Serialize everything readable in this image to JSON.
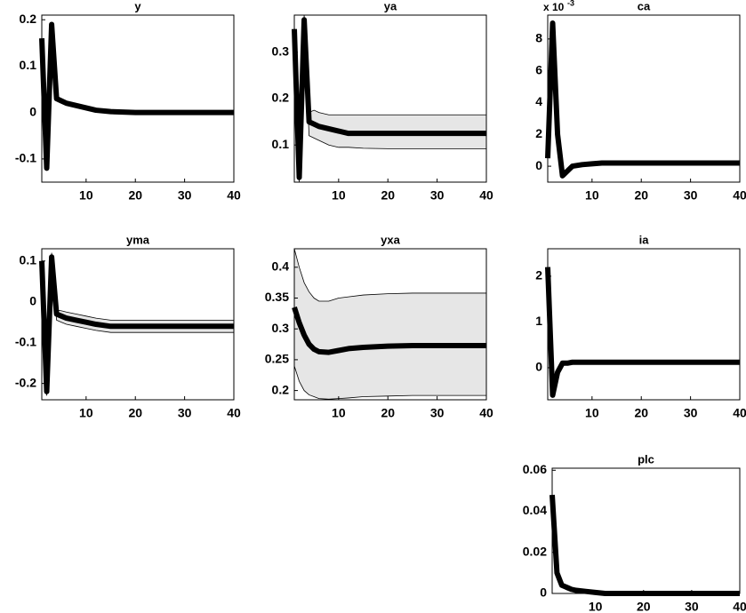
{
  "chart_data": [
    {
      "type": "line",
      "title": "y",
      "x": [
        1,
        2,
        3,
        4,
        5,
        6,
        8,
        10,
        12,
        15,
        20,
        25,
        30,
        35,
        40
      ],
      "xlim": [
        1,
        40
      ],
      "xticks": [
        10,
        20,
        30,
        40
      ],
      "ylim": [
        -0.15,
        0.21
      ],
      "yticks": [
        -0.1,
        0,
        0.1,
        0.2
      ],
      "series": [
        {
          "color": "#000000",
          "values": [
            0.16,
            -0.12,
            0.19,
            0.03,
            0.025,
            0.02,
            0.015,
            0.01,
            0.005,
            0.002,
            0,
            0,
            0,
            0,
            0
          ]
        }
      ]
    },
    {
      "type": "line",
      "title": "ya",
      "x": [
        1,
        2,
        3,
        4,
        5,
        6,
        8,
        10,
        12,
        15,
        20,
        25,
        30,
        35,
        40
      ],
      "xlim": [
        1,
        40
      ],
      "xticks": [
        10,
        20,
        30,
        40
      ],
      "ylim": [
        0.02,
        0.38
      ],
      "yticks": [
        0.1,
        0.2,
        0.3
      ],
      "band": {
        "color": "#e6e6e6",
        "upper": [
          0.36,
          0.05,
          0.38,
          0.17,
          0.175,
          0.17,
          0.165,
          0.165,
          0.165,
          0.165,
          0.165,
          0.165,
          0.165,
          0.165,
          0.165
        ],
        "lower": [
          0.34,
          0.02,
          0.36,
          0.12,
          0.115,
          0.11,
          0.1,
          0.095,
          0.095,
          0.093,
          0.092,
          0.092,
          0.092,
          0.092,
          0.092
        ]
      },
      "series": [
        {
          "color": "#000000",
          "values": [
            0.35,
            0.03,
            0.37,
            0.15,
            0.145,
            0.14,
            0.135,
            0.13,
            0.125,
            0.125,
            0.125,
            0.125,
            0.125,
            0.125,
            0.125
          ]
        }
      ]
    },
    {
      "type": "line",
      "title": "ca",
      "axis_note": "x 10",
      "axis_note_exp": "-3",
      "x": [
        1,
        2,
        3,
        4,
        5,
        6,
        8,
        10,
        12,
        15,
        20,
        25,
        30,
        35,
        40
      ],
      "xlim": [
        1,
        40
      ],
      "xticks": [
        10,
        20,
        30,
        40
      ],
      "ylim": [
        -1,
        9.5
      ],
      "yticks": [
        0,
        2,
        4,
        6,
        8
      ],
      "series": [
        {
          "color": "#000000",
          "values": [
            0.5,
            9,
            2,
            -0.6,
            -0.3,
            0,
            0.1,
            0.15,
            0.2,
            0.2,
            0.2,
            0.2,
            0.2,
            0.2,
            0.2
          ]
        }
      ]
    },
    {
      "type": "line",
      "title": "yma",
      "x": [
        1,
        2,
        3,
        4,
        5,
        6,
        8,
        10,
        12,
        15,
        20,
        25,
        30,
        35,
        40
      ],
      "xlim": [
        1,
        40
      ],
      "xticks": [
        10,
        20,
        30,
        40
      ],
      "ylim": [
        -0.24,
        0.13
      ],
      "yticks": [
        -0.2,
        -0.1,
        0,
        0.1
      ],
      "band": {
        "color": "#e6e6e6",
        "upper": [
          0.11,
          -0.21,
          0.12,
          -0.02,
          -0.022,
          -0.025,
          -0.03,
          -0.035,
          -0.04,
          -0.045,
          -0.045,
          -0.045,
          -0.045,
          -0.045,
          -0.045
        ],
        "lower": [
          0.09,
          -0.23,
          0.1,
          -0.045,
          -0.05,
          -0.055,
          -0.06,
          -0.065,
          -0.07,
          -0.075,
          -0.075,
          -0.075,
          -0.075,
          -0.075,
          -0.075
        ]
      },
      "series": [
        {
          "color": "#000000",
          "values": [
            0.1,
            -0.22,
            0.11,
            -0.03,
            -0.035,
            -0.04,
            -0.045,
            -0.05,
            -0.055,
            -0.06,
            -0.06,
            -0.06,
            -0.06,
            -0.06,
            -0.06
          ]
        }
      ]
    },
    {
      "type": "line",
      "title": "yxa",
      "x": [
        1,
        2,
        3,
        4,
        5,
        6,
        8,
        10,
        12,
        15,
        20,
        25,
        30,
        35,
        40
      ],
      "xlim": [
        1,
        40
      ],
      "xticks": [
        10,
        20,
        30,
        40
      ],
      "ylim": [
        0.185,
        0.43
      ],
      "yticks": [
        0.2,
        0.25,
        0.3,
        0.35,
        0.4
      ],
      "band": {
        "color": "#e6e6e6",
        "upper": [
          0.43,
          0.4,
          0.375,
          0.36,
          0.35,
          0.345,
          0.345,
          0.35,
          0.352,
          0.355,
          0.357,
          0.358,
          0.358,
          0.358,
          0.358
        ],
        "lower": [
          0.24,
          0.215,
          0.2,
          0.193,
          0.19,
          0.187,
          0.186,
          0.187,
          0.188,
          0.19,
          0.191,
          0.192,
          0.192,
          0.192,
          0.192
        ]
      },
      "series": [
        {
          "color": "#000000",
          "values": [
            0.335,
            0.31,
            0.29,
            0.275,
            0.267,
            0.263,
            0.262,
            0.265,
            0.268,
            0.27,
            0.272,
            0.273,
            0.273,
            0.273,
            0.273
          ]
        }
      ]
    },
    {
      "type": "line",
      "title": "ia",
      "x": [
        1,
        2,
        3,
        4,
        5,
        6,
        8,
        10,
        12,
        15,
        20,
        25,
        30,
        35,
        40
      ],
      "xlim": [
        1,
        40
      ],
      "xticks": [
        10,
        20,
        30,
        40
      ],
      "ylim": [
        -0.7,
        2.6
      ],
      "yticks": [
        0,
        1,
        2
      ],
      "series": [
        {
          "color": "#000000",
          "values": [
            2.2,
            -0.6,
            -0.1,
            0.1,
            0.1,
            0.12,
            0.12,
            0.12,
            0.12,
            0.12,
            0.12,
            0.12,
            0.12,
            0.12,
            0.12
          ]
        }
      ]
    },
    {
      "type": "line",
      "title": "plc",
      "x": [
        1,
        2,
        3,
        4,
        5,
        6,
        8,
        10,
        12,
        15,
        20,
        25,
        30,
        35,
        40
      ],
      "xlim": [
        1,
        40
      ],
      "xticks": [
        10,
        20,
        30,
        40
      ],
      "ylim": [
        0,
        0.061
      ],
      "yticks": [
        0,
        0.02,
        0.04,
        0.06
      ],
      "series": [
        {
          "color": "#000000",
          "values": [
            0.048,
            0.01,
            0.004,
            0.003,
            0.002,
            0.0015,
            0.001,
            0.0005,
            0,
            0,
            0,
            0,
            0,
            0,
            0
          ]
        }
      ]
    }
  ]
}
